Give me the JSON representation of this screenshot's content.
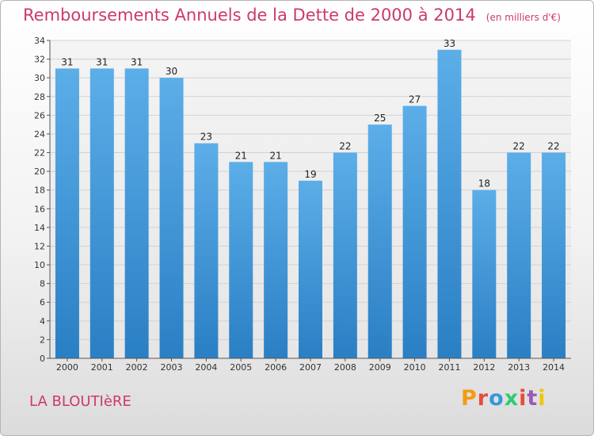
{
  "header": {
    "title": "Remboursements Annuels de la Dette de 2000 à 2014",
    "unit": "(en milliers d'€)"
  },
  "footer": {
    "commune": "LA BLOUTIèRE",
    "logo_letters": [
      "P",
      "r",
      "o",
      "x",
      "i",
      "t",
      "i"
    ]
  },
  "colors": {
    "title": "#cc3a6b",
    "bar_top": "#5caee8",
    "bar_bottom": "#2a7fc4",
    "logo": [
      "#f39c12",
      "#e74c3c",
      "#3498db",
      "#2ecc71",
      "#e74c3c",
      "#9b59b6",
      "#f1c40f"
    ]
  },
  "chart_data": {
    "type": "bar",
    "categories": [
      "2000",
      "2001",
      "2002",
      "2003",
      "2004",
      "2005",
      "2006",
      "2007",
      "2008",
      "2009",
      "2010",
      "2011",
      "2012",
      "2013",
      "2014"
    ],
    "values": [
      31,
      31,
      31,
      30,
      23,
      21,
      21,
      19,
      22,
      25,
      27,
      33,
      18,
      22,
      22
    ],
    "title": "Remboursements Annuels de la Dette de 2000 à 2014",
    "ylim": [
      0,
      34
    ],
    "yticks": [
      0,
      2,
      4,
      6,
      8,
      10,
      12,
      14,
      16,
      18,
      20,
      22,
      24,
      26,
      28,
      30,
      32,
      34
    ],
    "grid": true
  }
}
